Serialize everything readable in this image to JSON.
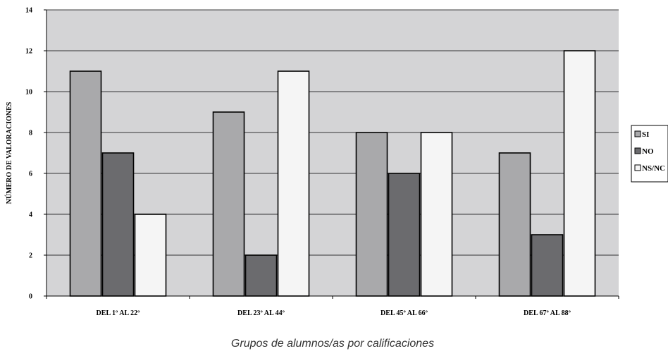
{
  "chart_data": {
    "type": "bar",
    "categories": [
      "DEL 1º AL 22º",
      "DEL 23º AL 44º",
      "DEL 45º AL 66º",
      "DEL 67º AL 88º"
    ],
    "series": [
      {
        "name": "SI",
        "values": [
          11,
          9,
          8,
          7
        ],
        "color": "#a9a9ab"
      },
      {
        "name": "NO",
        "values": [
          7,
          2,
          6,
          3
        ],
        "color": "#6b6b6e"
      },
      {
        "name": "NS/NC",
        "values": [
          4,
          11,
          8,
          12
        ],
        "color": "#f5f5f5"
      }
    ],
    "title": "",
    "xlabel": "Grupos de alumnos/as por calificaciones",
    "ylabel": "NÚMERO DE VALORACIONES",
    "ylim": [
      0,
      14
    ],
    "yticks": [
      0,
      2,
      4,
      6,
      8,
      10,
      12,
      14
    ],
    "grid": true,
    "plot_background": "#d4d4d6",
    "legend_position": "right"
  }
}
